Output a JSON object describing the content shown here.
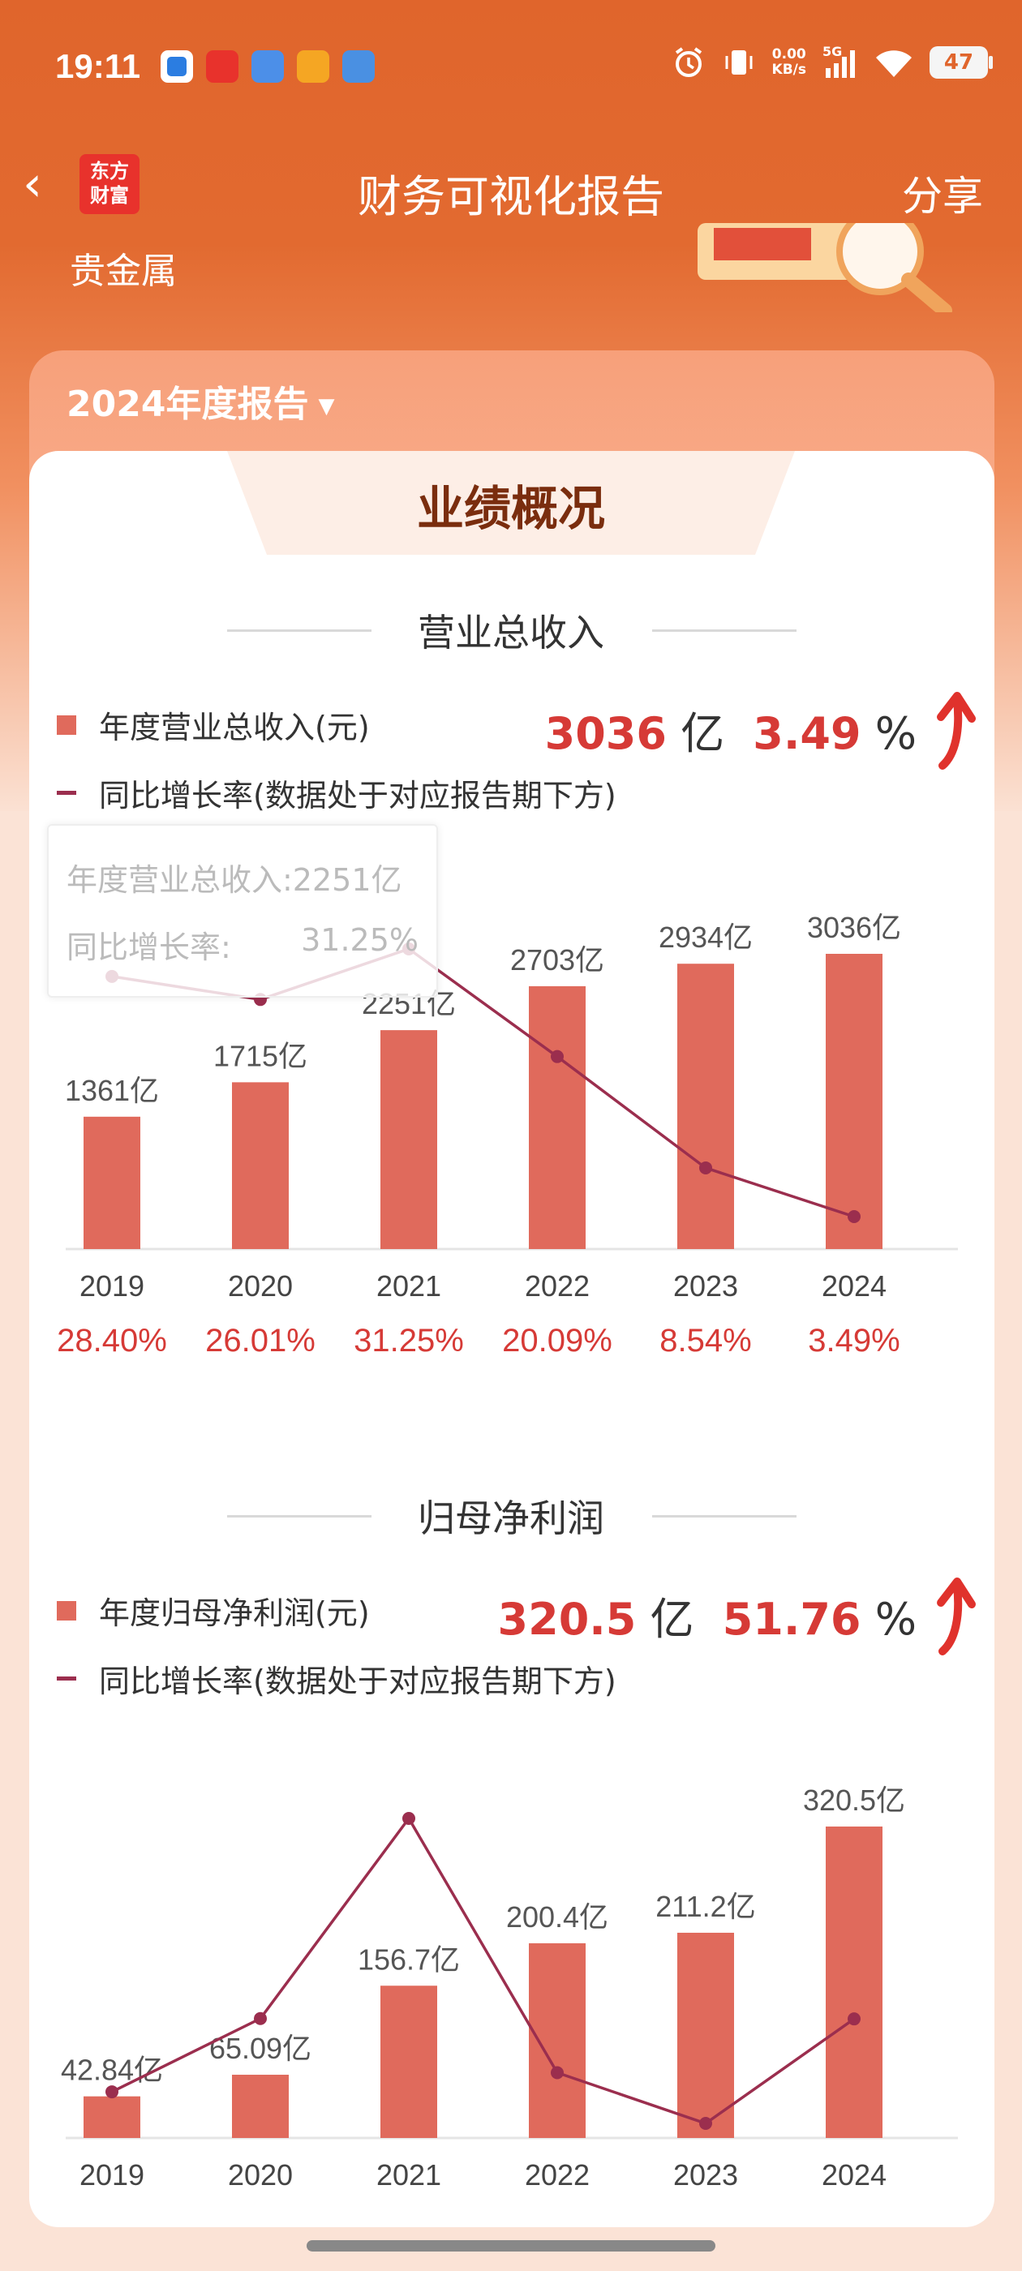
{
  "status": {
    "time": "19:11",
    "net_speed_value": "0.00",
    "net_speed_unit": "KB/s",
    "signal": "5G",
    "battery": "47"
  },
  "nav": {
    "back": "‹",
    "logo_line1": "东方",
    "logo_line2": "财富",
    "title": "财务可视化报告",
    "share": "分享"
  },
  "industry": "贵金属",
  "year_select": "2024年度报告",
  "tab_title": "业绩概况",
  "revenue": {
    "section_title": "营业总收入",
    "legend_bar": "年度营业总收入(元)",
    "legend_line": "同比增长率(数据处于对应报告期下方)",
    "headline_value": "3036",
    "headline_unit": "亿",
    "headline_pct": "3.49",
    "headline_pct_unit": "%",
    "tooltip_label1": "年度营业总收入:2251亿",
    "tooltip_label2": "同比增长率:",
    "tooltip_value2": "31.25%"
  },
  "profit": {
    "section_title": "归母净利润",
    "legend_bar": "年度归母净利润(元)",
    "legend_line": "同比增长率(数据处于对应报告期下方)",
    "headline_value": "320.5",
    "headline_unit": "亿",
    "headline_pct": "51.76",
    "headline_pct_unit": "%"
  },
  "colors": {
    "bar": "#e06a5c",
    "line": "#9b2e4e",
    "pct_text": "#d63a36",
    "accent": "#e0652c"
  },
  "chart_data": [
    {
      "type": "bar",
      "categories": [
        "2019",
        "2020",
        "2021",
        "2022",
        "2023",
        "2024"
      ],
      "series": [
        {
          "name": "年度营业总收入(元)",
          "values": [
            1361,
            1715,
            2251,
            2703,
            2934,
            3036
          ],
          "labels": [
            "1361亿",
            "1715亿",
            "2251亿",
            "2703亿",
            "2934亿",
            "3036亿"
          ]
        },
        {
          "name": "同比增长率(数据处于对应报告期下方)",
          "type": "line",
          "values": [
            28.4,
            26.01,
            31.25,
            20.09,
            8.54,
            3.49
          ],
          "labels": [
            "28.40%",
            "26.01%",
            "31.25%",
            "20.09%",
            "8.54%",
            "3.49%"
          ]
        }
      ],
      "title": "营业总收入"
    },
    {
      "type": "bar",
      "categories": [
        "2019",
        "2020",
        "2021",
        "2022",
        "2023",
        "2024"
      ],
      "series": [
        {
          "name": "年度归母净利润(元)",
          "values": [
            42.84,
            65.09,
            156.7,
            200.4,
            211.2,
            320.5
          ],
          "labels": [
            "42.84亿",
            "65.09亿",
            "156.7亿",
            "200.4亿",
            "211.2亿",
            "320.5亿"
          ]
        },
        {
          "name": "同比增长率(数据处于对应报告期下方)",
          "type": "line",
          "values": [
            19.4,
            51.9,
            140.7,
            27.9,
            5.4,
            51.76
          ]
        }
      ],
      "title": "归母净利润"
    }
  ]
}
